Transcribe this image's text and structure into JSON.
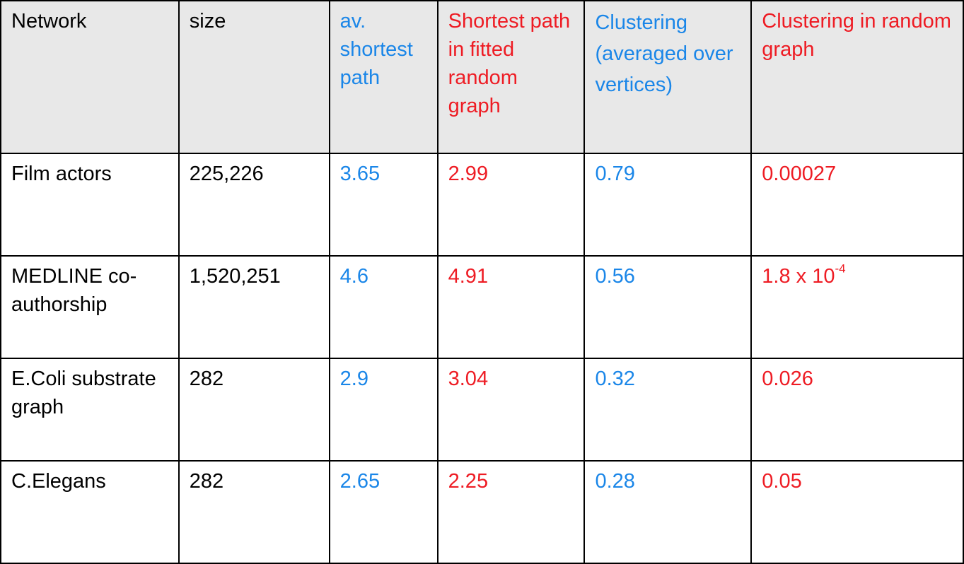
{
  "table": {
    "headers": [
      "Network",
      "size",
      "av. shortest path",
      "Shortest path in fitted random graph",
      "Clustering (averaged over vertices)",
      "Clustering in random graph"
    ],
    "rows": [
      {
        "network": "Film actors",
        "size": "225,226",
        "avg_shortest_path": "3.65",
        "random_shortest_path": "2.99",
        "clustering": "0.79",
        "random_clustering": "0.00027"
      },
      {
        "network": "MEDLINE co-authorship",
        "size": "1,520,251",
        "avg_shortest_path": "4.6",
        "random_shortest_path": "4.91",
        "clustering": "0.56",
        "random_clustering_base": "1.8 x 10",
        "random_clustering_exp": "-4"
      },
      {
        "network": "E.Coli substrate graph",
        "size": "282",
        "avg_shortest_path": "2.9",
        "random_shortest_path": "3.04",
        "clustering": "0.32",
        "random_clustering": "0.026"
      },
      {
        "network": "C.Elegans",
        "size": "282",
        "avg_shortest_path": "2.65",
        "random_shortest_path": "2.25",
        "clustering": "0.28",
        "random_clustering": "0.05"
      }
    ],
    "colors": {
      "measured": "#1a86e8",
      "random": "#ee1c24",
      "header_bg": "#e8e8e8",
      "text": "#000000"
    }
  }
}
